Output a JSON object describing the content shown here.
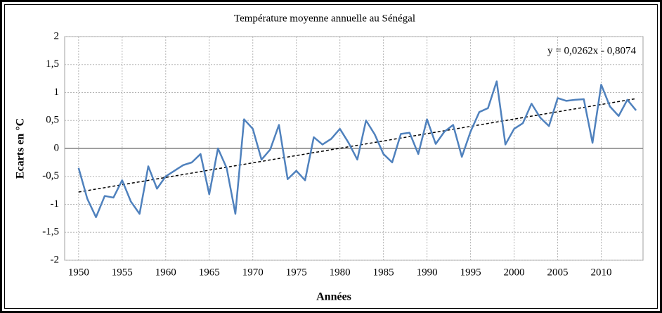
{
  "chart_data": {
    "type": "line",
    "title": "Température moyenne annuelle au Sénégal",
    "x_label": "Années",
    "y_label": "Ecarts en °C",
    "x": [
      1950,
      1951,
      1952,
      1953,
      1954,
      1955,
      1956,
      1957,
      1958,
      1959,
      1960,
      1961,
      1962,
      1963,
      1964,
      1965,
      1966,
      1967,
      1968,
      1969,
      1970,
      1971,
      1972,
      1973,
      1974,
      1975,
      1976,
      1977,
      1978,
      1979,
      1980,
      1981,
      1982,
      1983,
      1984,
      1985,
      1986,
      1987,
      1988,
      1989,
      1990,
      1991,
      1992,
      1993,
      1994,
      1995,
      1996,
      1997,
      1998,
      1999,
      2000,
      2001,
      2002,
      2003,
      2004,
      2005,
      2006,
      2007,
      2008,
      2009,
      2010,
      2011,
      2012,
      2013,
      2014
    ],
    "series": [
      {
        "color": "#4f81bd",
        "values": [
          -0.35,
          -0.9,
          -1.23,
          -0.85,
          -0.88,
          -0.57,
          -0.95,
          -1.17,
          -0.32,
          -0.72,
          -0.5,
          -0.4,
          -0.3,
          -0.25,
          -0.1,
          -0.82,
          0.0,
          -0.35,
          -1.17,
          0.52,
          0.35,
          -0.2,
          -0.02,
          0.42,
          -0.55,
          -0.4,
          -0.57,
          0.2,
          0.07,
          0.17,
          0.35,
          0.1,
          -0.2,
          0.5,
          0.25,
          -0.1,
          -0.25,
          0.26,
          0.28,
          -0.1,
          0.52,
          0.08,
          0.3,
          0.42,
          -0.15,
          0.3,
          0.65,
          0.72,
          1.2,
          0.07,
          0.35,
          0.45,
          0.8,
          0.55,
          0.4,
          0.9,
          0.85,
          0.87,
          0.88,
          0.1,
          1.14,
          0.75,
          0.58,
          0.87,
          0.68
        ]
      }
    ],
    "trendline": {
      "x": [
        1950,
        2014
      ],
      "values": [
        -0.78,
        0.89
      ],
      "color": "#000000",
      "equation": "y = 0,0262x - 0,8074"
    },
    "xlim": [
      1948.4,
      2014.8
    ],
    "xticks": [
      1950,
      1955,
      1960,
      1965,
      1970,
      1975,
      1980,
      1985,
      1990,
      1995,
      2000,
      2005,
      2010
    ],
    "ylim": [
      -2,
      2
    ],
    "yticks": [
      -2,
      {
        "value": -1.5,
        "label": "-1,5"
      },
      -1,
      {
        "value": -0.5,
        "label": "-0,5"
      },
      0,
      {
        "value": 0.5,
        "label": "0,5"
      },
      1,
      {
        "value": 1.5,
        "label": "1,5"
      },
      2
    ],
    "grid": true
  }
}
